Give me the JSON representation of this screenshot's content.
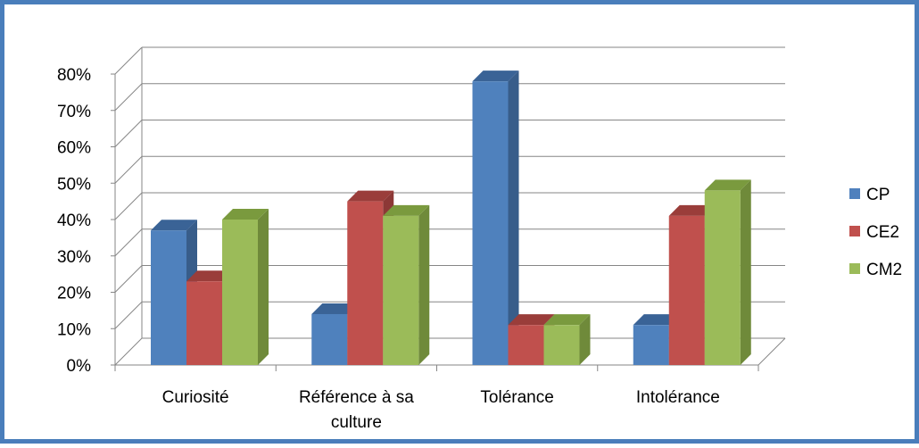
{
  "chart_data": {
    "type": "bar",
    "style": "3d-clustered-column",
    "categories": [
      [
        "Curiosité"
      ],
      [
        "Référence à sa",
        "culture"
      ],
      [
        "Tolérance"
      ],
      [
        "Intolérance"
      ]
    ],
    "series": [
      {
        "name": "CP",
        "values": [
          37,
          14,
          78,
          11
        ],
        "color": "#4f81bd",
        "side_color": "#385d8a",
        "top_color": "#3a6396"
      },
      {
        "name": "CE2",
        "values": [
          23,
          45,
          11,
          41
        ],
        "color": "#c0504d",
        "side_color": "#8c3836",
        "top_color": "#9a3d3a"
      },
      {
        "name": "CM2",
        "values": [
          40,
          41,
          11,
          48
        ],
        "color": "#9bbb59",
        "side_color": "#6f8a3a",
        "top_color": "#7a9a3e"
      }
    ],
    "y_ticks": [
      "0%",
      "10%",
      "20%",
      "30%",
      "40%",
      "50%",
      "60%",
      "70%",
      "80%"
    ],
    "ylim": [
      0,
      80
    ],
    "y_unit": "%",
    "grid": true,
    "legend_position": "right",
    "frame_color": "#4a7ebb"
  }
}
